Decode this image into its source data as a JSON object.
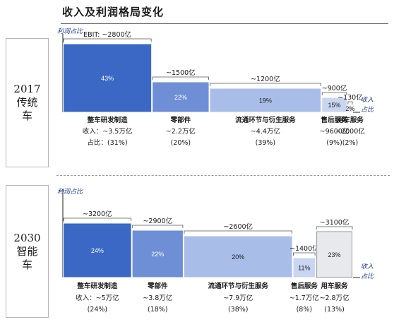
{
  "title": "收入及利润格局变化",
  "chart_data": [
    {
      "type": "bar",
      "era": [
        "2017",
        "传统",
        "车"
      ],
      "y_axis_label": "利润占比",
      "x_axis_label": [
        "收入",
        "占比"
      ],
      "row_labels": {
        "revenue": "收入：",
        "share": "占比："
      },
      "segments": [
        {
          "name": "整车研发制造",
          "profit": "EBIT: ~2800亿",
          "profit_value": 2800,
          "profit_share_pct": 43,
          "profit_share_label": "43%",
          "revenue": "~3.5万亿",
          "revenue_share_pct": 31,
          "revenue_share_label": "(31%)",
          "color": "#3a68c4"
        },
        {
          "name": "零部件",
          "profit": "~1500亿",
          "profit_value": 1500,
          "profit_share_pct": 22,
          "profit_share_label": "22%",
          "revenue": "~2.2万亿",
          "revenue_share_pct": 20,
          "revenue_share_label": "(20%)",
          "color": "#6e8fd6"
        },
        {
          "name": "流通环节与衍生服务",
          "profit": "~1200亿",
          "profit_value": 1200,
          "profit_share_pct": 19,
          "profit_share_label": "19%",
          "revenue": "~4.4万亿",
          "revenue_share_pct": 39,
          "revenue_share_label": "(39%)",
          "color": "#a9bde9"
        },
        {
          "name": "售后服务",
          "profit": "~900亿",
          "profit_value": 900,
          "profit_share_pct": 15,
          "profit_share_label": "15%",
          "revenue": "~9600亿",
          "revenue_share_pct": 9,
          "revenue_share_label": "(9%)",
          "color": "#c9d6f2"
        },
        {
          "name": "用车服务",
          "profit": "~130亿",
          "profit_value": 130,
          "profit_share_pct": 2,
          "profit_share_label": "2%",
          "revenue": "~2000亿",
          "revenue_share_pct": 2,
          "revenue_share_label": "(2%)",
          "color": "#e2e6ee"
        }
      ]
    },
    {
      "type": "bar",
      "era": [
        "2030",
        "智能",
        "车"
      ],
      "y_axis_label": "利润占比",
      "x_axis_label": [
        "收入",
        "占比"
      ],
      "row_labels": {
        "revenue": "收入：",
        "share": ""
      },
      "segments": [
        {
          "name": "整车研发制造",
          "profit": "~3200亿",
          "profit_value": 3200,
          "profit_share_pct": 24,
          "profit_share_label": "24%",
          "revenue": "~5万亿",
          "revenue_share_pct": 24,
          "revenue_share_label": "(24%)",
          "color": "#3a68c4"
        },
        {
          "name": "零部件",
          "profit": "~2900亿",
          "profit_value": 2900,
          "profit_share_pct": 22,
          "profit_share_label": "22%",
          "revenue": "~3.8万亿",
          "revenue_share_pct": 18,
          "revenue_share_label": "(18%)",
          "color": "#6e8fd6"
        },
        {
          "name": "流通环节与衍生服务",
          "profit": "~2600亿",
          "profit_value": 2600,
          "profit_share_pct": 20,
          "profit_share_label": "20%",
          "revenue": "~7.9万亿",
          "revenue_share_pct": 38,
          "revenue_share_label": "(38%)",
          "color": "#a9bde9"
        },
        {
          "name": "售后服务",
          "profit": "~1400亿",
          "profit_value": 1400,
          "profit_share_pct": 11,
          "profit_share_label": "11%",
          "revenue": "~1.7万亿",
          "revenue_share_pct": 8,
          "revenue_share_label": "(8%)",
          "color": "#c9d6f2"
        },
        {
          "name": "用车服务",
          "profit": "~3100亿",
          "profit_value": 3100,
          "profit_share_pct": 23,
          "profit_share_label": "23%",
          "revenue": "~2.8万亿",
          "revenue_share_pct": 13,
          "revenue_share_label": "(13%)",
          "color": "#e8e9ec"
        }
      ]
    }
  ]
}
